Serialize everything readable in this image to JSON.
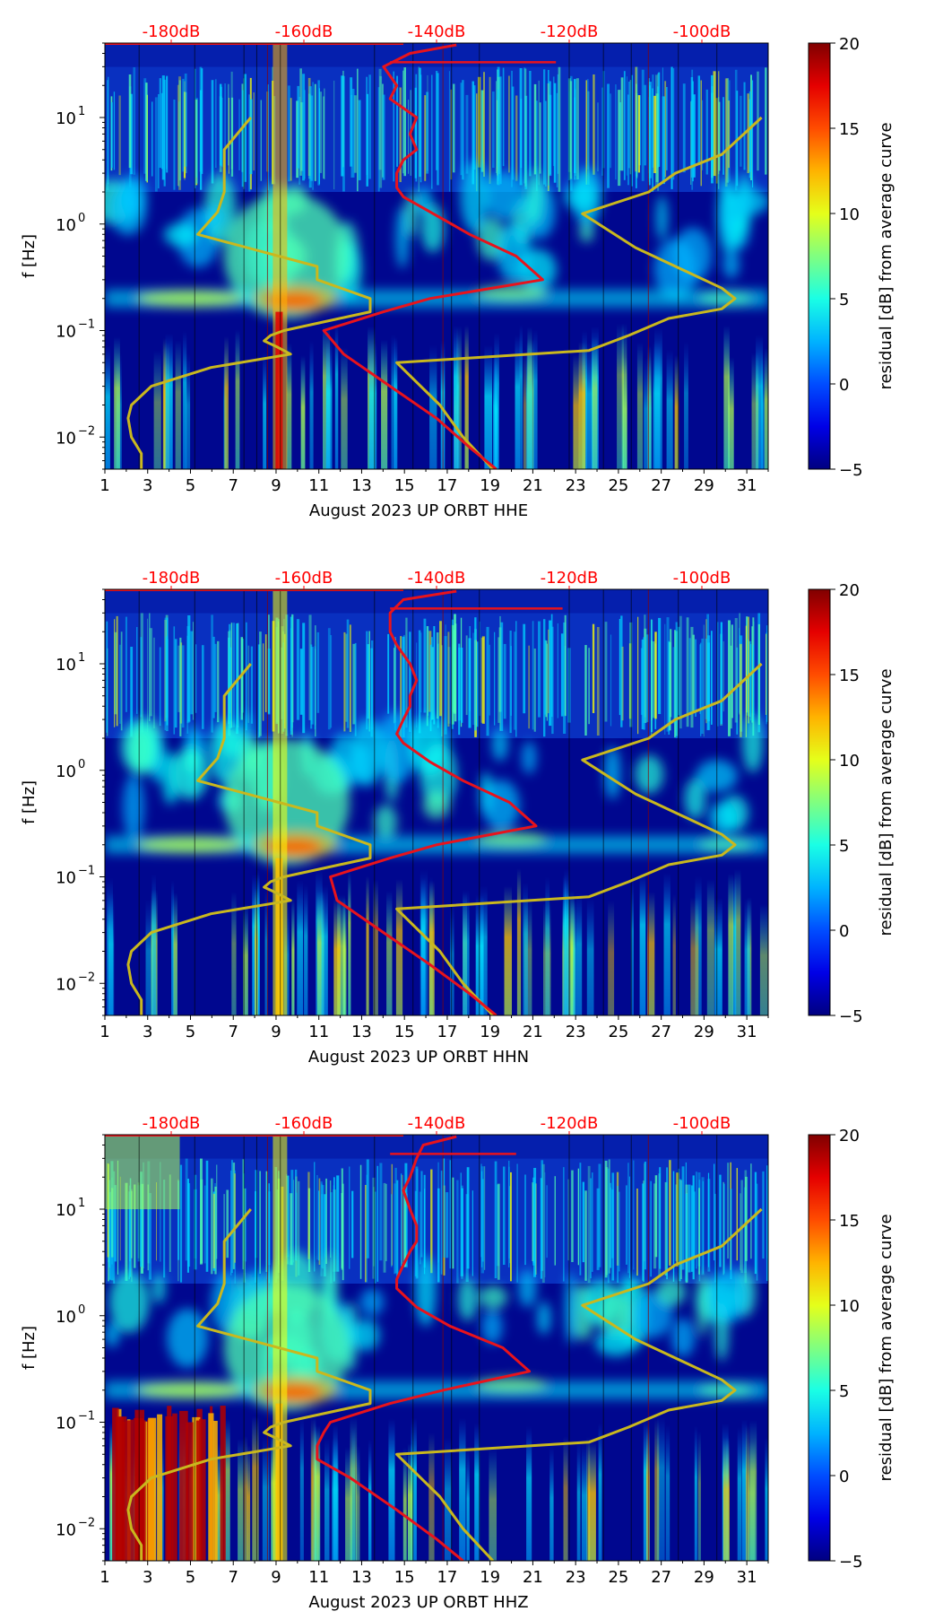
{
  "chart_data": [
    {
      "type": "heatmap",
      "station": "UP ORBT",
      "channel": "HHE",
      "xlabel": "August 2023 UP ORBT  HHE",
      "ylabel": "f [Hz]",
      "colorbar_label": "residual [dB] from average curve",
      "x_ticks": [
        "1",
        "3",
        "5",
        "7",
        "9",
        "11",
        "13",
        "15",
        "17",
        "19",
        "21",
        "23",
        "25",
        "27",
        "29",
        "31"
      ],
      "xlim": [
        1,
        32
      ],
      "y_ticks": [
        {
          "exp": "-2",
          "value": 0.01
        },
        {
          "exp": "-1",
          "value": 0.1
        },
        {
          "exp": "0",
          "value": 1
        },
        {
          "exp": "1",
          "value": 10
        }
      ],
      "ylim": [
        0.005,
        50
      ],
      "db_ticks": [
        "-180dB",
        "-160dB",
        "-140dB",
        "-120dB",
        "-100dB"
      ],
      "db_range": [
        -190,
        -90
      ],
      "colorbar_ticks": [
        "20",
        "15",
        "10",
        "5",
        "0",
        "−5"
      ],
      "colorbar_range": [
        -5,
        20
      ],
      "series": [
        {
          "name": "low noise model",
          "color": "#c9b81e",
          "freq": [
            0.005,
            0.007,
            0.01,
            0.015,
            0.02,
            0.03,
            0.045,
            0.06,
            0.07,
            0.08,
            0.09,
            0.1,
            0.15,
            0.2,
            0.3,
            0.4,
            0.8,
            1.3,
            2,
            5,
            10
          ],
          "db": [
            -184.5,
            -184.5,
            -186,
            -186.5,
            -186,
            -183,
            -174,
            -162,
            -164,
            -166,
            -165,
            -163,
            -150,
            -150,
            -158,
            -158,
            -176,
            -173,
            -172,
            -172,
            -168
          ]
        },
        {
          "name": "high noise model",
          "color": "#c9b81e",
          "freq": [
            0.005,
            0.01,
            0.02,
            0.05,
            0.065,
            0.09,
            0.13,
            0.16,
            0.2,
            0.25,
            0.6,
            1.25,
            2,
            3,
            4.5,
            10
          ],
          "db": [
            -131.5,
            -136,
            -139.5,
            -146,
            -117,
            -111,
            -105,
            -97,
            -95,
            -97,
            -110,
            -118,
            -108,
            -104,
            -97,
            -91
          ]
        },
        {
          "name": "average PSD",
          "color": "#e8131c",
          "freq": [
            0.005,
            0.008,
            0.015,
            0.03,
            0.06,
            0.1,
            0.15,
            0.2,
            0.3,
            0.5,
            0.8,
            1.2,
            1.8,
            2.2,
            3,
            4,
            5,
            7,
            10,
            15,
            20,
            30,
            40,
            48
          ],
          "db": [
            -131,
            -135,
            -140,
            -147,
            -154,
            -157,
            -148,
            -141,
            -124,
            -128,
            -135,
            -140,
            -145,
            -146,
            -146,
            -145,
            -143,
            -144,
            -143,
            -147,
            -146,
            -148,
            -144,
            -137
          ]
        }
      ]
    },
    {
      "type": "heatmap",
      "station": "UP ORBT",
      "channel": "HHN",
      "xlabel": "August 2023 UP ORBT  HHN",
      "ylabel": "f [Hz]",
      "colorbar_label": "residual [dB] from average curve",
      "x_ticks": [
        "1",
        "3",
        "5",
        "7",
        "9",
        "11",
        "13",
        "15",
        "17",
        "19",
        "21",
        "23",
        "25",
        "27",
        "29",
        "31"
      ],
      "xlim": [
        1,
        32
      ],
      "y_ticks": [
        {
          "exp": "-2",
          "value": 0.01
        },
        {
          "exp": "-1",
          "value": 0.1
        },
        {
          "exp": "0",
          "value": 1
        },
        {
          "exp": "1",
          "value": 10
        }
      ],
      "ylim": [
        0.005,
        50
      ],
      "db_ticks": [
        "-180dB",
        "-160dB",
        "-140dB",
        "-120dB",
        "-100dB"
      ],
      "db_range": [
        -190,
        -90
      ],
      "colorbar_ticks": [
        "20",
        "15",
        "10",
        "5",
        "0",
        "−5"
      ],
      "colorbar_range": [
        -5,
        20
      ],
      "series": [
        {
          "name": "low noise model",
          "color": "#c9b81e",
          "freq": [
            0.005,
            0.007,
            0.01,
            0.015,
            0.02,
            0.03,
            0.045,
            0.06,
            0.07,
            0.08,
            0.09,
            0.1,
            0.15,
            0.2,
            0.3,
            0.4,
            0.8,
            1.3,
            2,
            5,
            10
          ],
          "db": [
            -184.5,
            -184.5,
            -186,
            -186.5,
            -186,
            -183,
            -174,
            -162,
            -164,
            -166,
            -165,
            -163,
            -150,
            -150,
            -158,
            -158,
            -176,
            -173,
            -172,
            -172,
            -168
          ]
        },
        {
          "name": "high noise model",
          "color": "#c9b81e",
          "freq": [
            0.005,
            0.01,
            0.02,
            0.05,
            0.065,
            0.09,
            0.13,
            0.16,
            0.2,
            0.25,
            0.6,
            1.25,
            2,
            3,
            4.5,
            10
          ],
          "db": [
            -131.5,
            -136,
            -139.5,
            -146,
            -117,
            -111,
            -105,
            -97,
            -95,
            -97,
            -110,
            -118,
            -108,
            -104,
            -97,
            -91
          ]
        },
        {
          "name": "average PSD",
          "color": "#e8131c",
          "freq": [
            0.005,
            0.008,
            0.015,
            0.03,
            0.06,
            0.1,
            0.15,
            0.2,
            0.3,
            0.5,
            0.8,
            1.2,
            1.8,
            2.2,
            3,
            4,
            5,
            7,
            10,
            15,
            20,
            30,
            40,
            48
          ],
          "db": [
            -131,
            -135,
            -141,
            -148,
            -155,
            -156,
            -147,
            -140,
            -125,
            -129,
            -136,
            -141,
            -145,
            -146,
            -145,
            -144,
            -144,
            -143,
            -144,
            -146,
            -147,
            -147,
            -145,
            -137
          ]
        }
      ]
    },
    {
      "type": "heatmap",
      "station": "UP ORBT",
      "channel": "HHZ",
      "xlabel": "August 2023 UP ORBT  HHZ",
      "ylabel": "f [Hz]",
      "colorbar_label": "residual [dB] from average curve",
      "x_ticks": [
        "1",
        "3",
        "5",
        "7",
        "9",
        "11",
        "13",
        "15",
        "17",
        "19",
        "21",
        "23",
        "25",
        "27",
        "29",
        "31"
      ],
      "xlim": [
        1,
        32
      ],
      "y_ticks": [
        {
          "exp": "-2",
          "value": 0.01
        },
        {
          "exp": "-1",
          "value": 0.1
        },
        {
          "exp": "0",
          "value": 1
        },
        {
          "exp": "1",
          "value": 10
        }
      ],
      "ylim": [
        0.005,
        50
      ],
      "db_ticks": [
        "-180dB",
        "-160dB",
        "-140dB",
        "-120dB",
        "-100dB"
      ],
      "db_range": [
        -190,
        -90
      ],
      "colorbar_ticks": [
        "20",
        "15",
        "10",
        "5",
        "0",
        "−5"
      ],
      "colorbar_range": [
        -5,
        20
      ],
      "series": [
        {
          "name": "low noise model",
          "color": "#c9b81e",
          "freq": [
            0.005,
            0.007,
            0.01,
            0.015,
            0.02,
            0.03,
            0.045,
            0.06,
            0.07,
            0.08,
            0.09,
            0.1,
            0.15,
            0.2,
            0.3,
            0.4,
            0.8,
            1.3,
            2,
            5,
            10
          ],
          "db": [
            -184.5,
            -184.5,
            -186,
            -186.5,
            -186,
            -183,
            -174,
            -162,
            -164,
            -166,
            -165,
            -163,
            -150,
            -150,
            -158,
            -158,
            -176,
            -173,
            -172,
            -172,
            -168
          ]
        },
        {
          "name": "high noise model",
          "color": "#c9b81e",
          "freq": [
            0.005,
            0.01,
            0.02,
            0.05,
            0.065,
            0.09,
            0.13,
            0.16,
            0.2,
            0.25,
            0.6,
            1.25,
            2,
            3,
            4.5,
            10
          ],
          "db": [
            -131.5,
            -136,
            -139.5,
            -146,
            -117,
            -111,
            -105,
            -97,
            -95,
            -97,
            -110,
            -118,
            -108,
            -104,
            -97,
            -91
          ]
        },
        {
          "name": "average PSD",
          "color": "#e8131c",
          "freq": [
            0.005,
            0.008,
            0.015,
            0.03,
            0.045,
            0.06,
            0.08,
            0.1,
            0.15,
            0.2,
            0.3,
            0.5,
            0.8,
            1.2,
            1.8,
            2.2,
            3,
            4,
            5,
            7,
            10,
            15,
            20,
            30,
            40,
            48
          ],
          "db": [
            -136,
            -140,
            -146,
            -153,
            -158,
            -158,
            -157,
            -156,
            -147,
            -139,
            -126,
            -130,
            -138,
            -143,
            -146,
            -146,
            -145,
            -144,
            -143,
            -143,
            -144,
            -145,
            -144,
            -143,
            -142,
            -137
          ]
        }
      ]
    }
  ]
}
